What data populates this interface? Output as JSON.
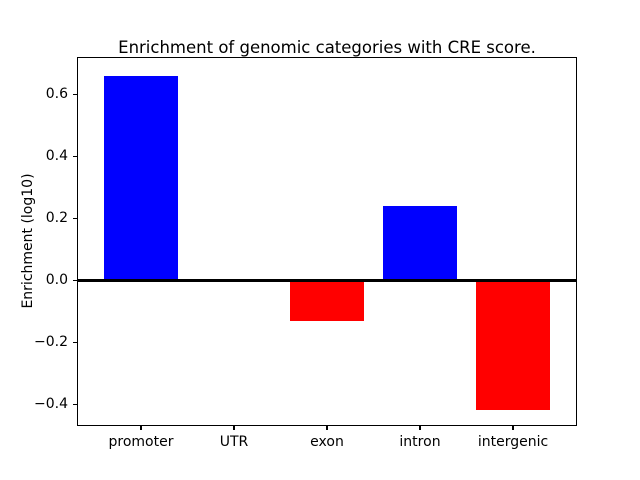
{
  "figure": {
    "background_color": "#ffffff",
    "text_color": "#000000",
    "axis_color": "#000000"
  },
  "chart_data": {
    "type": "bar",
    "title": "Enrichment of genomic categories with CRE score.",
    "xlabel": "",
    "ylabel": "Enrichment (log10)",
    "categories": [
      "promoter",
      "UTR",
      "exon",
      "intron",
      "intergenic"
    ],
    "values": [
      0.66,
      0.0,
      -0.13,
      0.24,
      -0.42
    ],
    "bar_colors": [
      "#0000ff",
      "#0000ff",
      "#ff0000",
      "#0000ff",
      "#ff0000"
    ],
    "positive_color": "#0000ff",
    "negative_color": "#ff0000",
    "ylim": [
      -0.467,
      0.717
    ],
    "yticks": [
      {
        "value": 0.6,
        "label": "0.6"
      },
      {
        "value": 0.4,
        "label": "0.4"
      },
      {
        "value": 0.2,
        "label": "0.2"
      },
      {
        "value": 0.0,
        "label": "0.0"
      },
      {
        "value": -0.2,
        "label": "−0.2"
      },
      {
        "value": -0.4,
        "label": "−0.4"
      }
    ],
    "grid": false,
    "legend": false,
    "zero_line": true,
    "bar_width_fraction": 0.8
  }
}
